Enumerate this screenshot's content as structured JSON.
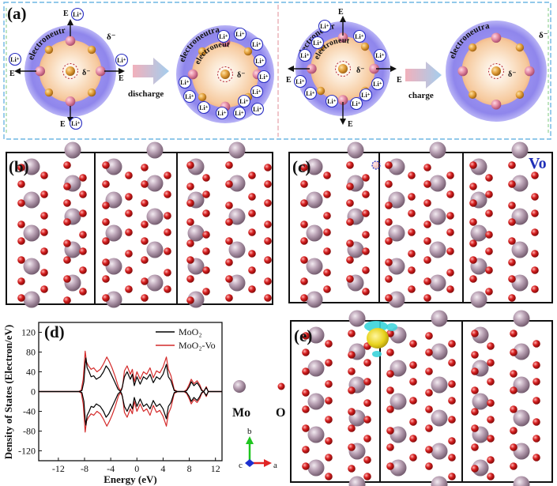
{
  "panels": {
    "a": {
      "label": "(a)",
      "words": {
        "electroneutral": "electroneutral",
        "delta_minus": "δ⁻",
        "field": "E",
        "li_ion": "Li⁺",
        "discharge": "discharge",
        "charge": "charge"
      }
    },
    "b": {
      "label": "(b)"
    },
    "c": {
      "label": "(c)",
      "vacancy_label": "Vo"
    },
    "d": {
      "label": "(d)"
    },
    "e": {
      "label": "(e)"
    }
  },
  "legend_atoms": {
    "mo": "Mo",
    "o": "O"
  },
  "axes_glyph": {
    "a": "a",
    "b": "b",
    "c": "c"
  },
  "colors": {
    "mo_atom": "#a88fa3",
    "o_atom": "#d62020",
    "series_moo2": "#000000",
    "series_moo2_vo": "#d42a2a",
    "shell": "#8f86ec",
    "core": "#f7d2a9",
    "cell_border": "#111111",
    "isosurface_yellow": "#e8d21c",
    "isosurface_cyan": "#3ad4da",
    "arrow_gradient_start": "#f0a8b4",
    "arrow_gradient_end": "#9ac8ec"
  },
  "chart_data": {
    "type": "line",
    "title": "",
    "xlabel": "Energy (eV)",
    "ylabel": "Density of States (Electron/eV)",
    "xlim": [
      -15,
      13
    ],
    "ylim": [
      -140,
      140
    ],
    "xticks": [
      -12,
      -8,
      -4,
      0,
      4,
      8,
      12
    ],
    "yticks": [
      -120,
      -80,
      -40,
      0,
      40,
      80,
      120
    ],
    "legend_position": "top-right",
    "series": [
      {
        "name": "MoO₂",
        "color": "#000000",
        "up": [
          [
            -15,
            0
          ],
          [
            -8.8,
            0
          ],
          [
            -8.4,
            2
          ],
          [
            -8.1,
            20
          ],
          [
            -7.9,
            55
          ],
          [
            -7.8,
            68
          ],
          [
            -7.6,
            48
          ],
          [
            -7.3,
            40
          ],
          [
            -7.0,
            30
          ],
          [
            -6.6,
            32
          ],
          [
            -6.2,
            25
          ],
          [
            -5.6,
            30
          ],
          [
            -5.1,
            40
          ],
          [
            -4.7,
            52
          ],
          [
            -4.3,
            45
          ],
          [
            -3.9,
            34
          ],
          [
            -3.4,
            20
          ],
          [
            -2.9,
            5
          ],
          [
            -2.5,
            0
          ],
          [
            -2.3,
            5
          ],
          [
            -1.9,
            30
          ],
          [
            -1.5,
            40
          ],
          [
            -1.0,
            25
          ],
          [
            -0.7,
            35
          ],
          [
            -0.4,
            12
          ],
          [
            0.0,
            30
          ],
          [
            0.5,
            15
          ],
          [
            1.0,
            30
          ],
          [
            1.5,
            25
          ],
          [
            2.0,
            35
          ],
          [
            2.5,
            18
          ],
          [
            3.0,
            30
          ],
          [
            3.5,
            25
          ],
          [
            4.0,
            35
          ],
          [
            4.5,
            55
          ],
          [
            4.8,
            30
          ],
          [
            5.2,
            22
          ],
          [
            5.7,
            2
          ],
          [
            6.2,
            0
          ],
          [
            7.3,
            0
          ],
          [
            7.6,
            2
          ],
          [
            8.0,
            10
          ],
          [
            8.3,
            20
          ],
          [
            8.7,
            12
          ],
          [
            9.2,
            18
          ],
          [
            9.6,
            10
          ],
          [
            9.9,
            2
          ],
          [
            10.2,
            0
          ],
          [
            10.6,
            8
          ],
          [
            10.9,
            0
          ],
          [
            13,
            0
          ]
        ],
        "down": [
          [
            -15,
            0
          ],
          [
            -8.8,
            0
          ],
          [
            -8.4,
            -2
          ],
          [
            -8.1,
            -20
          ],
          [
            -7.9,
            -55
          ],
          [
            -7.8,
            -68
          ],
          [
            -7.6,
            -48
          ],
          [
            -7.3,
            -40
          ],
          [
            -7.0,
            -30
          ],
          [
            -6.6,
            -32
          ],
          [
            -6.2,
            -25
          ],
          [
            -5.6,
            -30
          ],
          [
            -5.1,
            -40
          ],
          [
            -4.7,
            -52
          ],
          [
            -4.3,
            -45
          ],
          [
            -3.9,
            -34
          ],
          [
            -3.4,
            -20
          ],
          [
            -2.9,
            -5
          ],
          [
            -2.5,
            0
          ],
          [
            -2.3,
            -5
          ],
          [
            -1.9,
            -30
          ],
          [
            -1.5,
            -40
          ],
          [
            -1.0,
            -25
          ],
          [
            -0.7,
            -35
          ],
          [
            -0.4,
            -12
          ],
          [
            0.0,
            -30
          ],
          [
            0.5,
            -15
          ],
          [
            1.0,
            -30
          ],
          [
            1.5,
            -25
          ],
          [
            2.0,
            -35
          ],
          [
            2.5,
            -18
          ],
          [
            3.0,
            -30
          ],
          [
            3.5,
            -25
          ],
          [
            4.0,
            -35
          ],
          [
            4.5,
            -55
          ],
          [
            4.8,
            -30
          ],
          [
            5.2,
            -22
          ],
          [
            5.7,
            -2
          ],
          [
            6.2,
            0
          ],
          [
            7.3,
            0
          ],
          [
            7.6,
            -2
          ],
          [
            8.0,
            -10
          ],
          [
            8.3,
            -20
          ],
          [
            8.7,
            -12
          ],
          [
            9.2,
            -18
          ],
          [
            9.6,
            -10
          ],
          [
            9.9,
            -2
          ],
          [
            10.2,
            0
          ],
          [
            10.6,
            -8
          ],
          [
            10.9,
            0
          ],
          [
            13,
            0
          ]
        ]
      },
      {
        "name": "MoO₂-Vo",
        "color": "#d42a2a",
        "up": [
          [
            -15,
            0
          ],
          [
            -8.9,
            0
          ],
          [
            -8.5,
            3
          ],
          [
            -8.2,
            25
          ],
          [
            -8.0,
            62
          ],
          [
            -7.9,
            82
          ],
          [
            -7.7,
            60
          ],
          [
            -7.4,
            52
          ],
          [
            -7.0,
            45
          ],
          [
            -6.6,
            48
          ],
          [
            -6.1,
            40
          ],
          [
            -5.6,
            45
          ],
          [
            -5.1,
            56
          ],
          [
            -4.6,
            70
          ],
          [
            -4.2,
            60
          ],
          [
            -3.8,
            48
          ],
          [
            -3.3,
            30
          ],
          [
            -2.8,
            8
          ],
          [
            -2.5,
            2
          ],
          [
            -2.2,
            10
          ],
          [
            -1.9,
            42
          ],
          [
            -1.5,
            52
          ],
          [
            -1.0,
            35
          ],
          [
            -0.7,
            45
          ],
          [
            -0.4,
            20
          ],
          [
            0.0,
            40
          ],
          [
            0.5,
            25
          ],
          [
            1.0,
            40
          ],
          [
            1.5,
            35
          ],
          [
            2.0,
            48
          ],
          [
            2.5,
            28
          ],
          [
            3.0,
            42
          ],
          [
            3.5,
            38
          ],
          [
            4.0,
            50
          ],
          [
            4.5,
            70
          ],
          [
            4.8,
            45
          ],
          [
            5.2,
            32
          ],
          [
            5.7,
            4
          ],
          [
            6.2,
            0
          ],
          [
            7.2,
            0
          ],
          [
            7.6,
            4
          ],
          [
            8.0,
            15
          ],
          [
            8.3,
            25
          ],
          [
            8.7,
            16
          ],
          [
            9.2,
            22
          ],
          [
            9.6,
            14
          ],
          [
            9.9,
            4
          ],
          [
            10.2,
            0
          ],
          [
            10.6,
            10
          ],
          [
            10.9,
            0
          ],
          [
            13,
            0
          ]
        ],
        "down": [
          [
            -15,
            0
          ],
          [
            -8.9,
            0
          ],
          [
            -8.5,
            -3
          ],
          [
            -8.2,
            -25
          ],
          [
            -8.0,
            -62
          ],
          [
            -7.9,
            -82
          ],
          [
            -7.7,
            -60
          ],
          [
            -7.4,
            -52
          ],
          [
            -7.0,
            -45
          ],
          [
            -6.6,
            -48
          ],
          [
            -6.1,
            -40
          ],
          [
            -5.6,
            -45
          ],
          [
            -5.1,
            -56
          ],
          [
            -4.6,
            -70
          ],
          [
            -4.2,
            -60
          ],
          [
            -3.8,
            -48
          ],
          [
            -3.3,
            -30
          ],
          [
            -2.8,
            -8
          ],
          [
            -2.5,
            -2
          ],
          [
            -2.2,
            -10
          ],
          [
            -1.9,
            -42
          ],
          [
            -1.5,
            -52
          ],
          [
            -1.0,
            -35
          ],
          [
            -0.7,
            -45
          ],
          [
            -0.4,
            -20
          ],
          [
            0.0,
            -40
          ],
          [
            0.5,
            -25
          ],
          [
            1.0,
            -40
          ],
          [
            1.5,
            -35
          ],
          [
            2.0,
            -48
          ],
          [
            2.5,
            -28
          ],
          [
            3.0,
            -42
          ],
          [
            3.5,
            -38
          ],
          [
            4.0,
            -50
          ],
          [
            4.5,
            -70
          ],
          [
            4.8,
            -45
          ],
          [
            5.2,
            -32
          ],
          [
            5.7,
            -4
          ],
          [
            6.2,
            0
          ],
          [
            7.2,
            0
          ],
          [
            7.6,
            -4
          ],
          [
            8.0,
            -15
          ],
          [
            8.3,
            -25
          ],
          [
            8.7,
            -16
          ],
          [
            9.2,
            -22
          ],
          [
            9.6,
            -14
          ],
          [
            9.9,
            -4
          ],
          [
            10.2,
            0
          ],
          [
            10.6,
            -10
          ],
          [
            10.9,
            0
          ],
          [
            13,
            0
          ]
        ]
      }
    ]
  }
}
